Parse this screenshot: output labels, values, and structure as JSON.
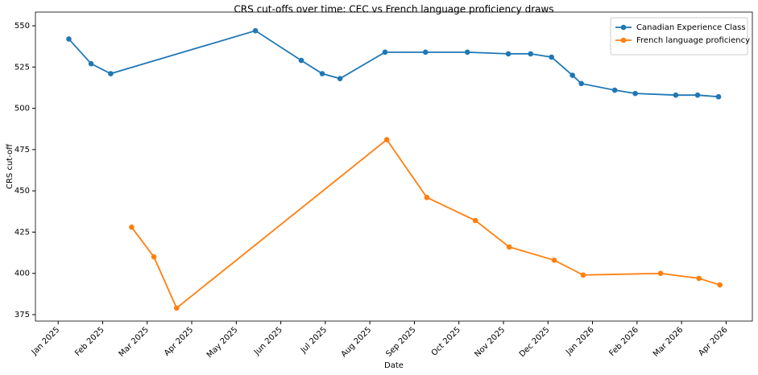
{
  "chart_data": {
    "type": "line",
    "title": "CRS cut-offs over time: CEC vs French language proficiency draws",
    "x_label": "Date",
    "y_label": "CRS cut-off",
    "xlim": [
      -0.51,
      15.59
    ],
    "xticks": [
      {
        "value": 0,
        "label": "Jan 2025"
      },
      {
        "value": 1,
        "label": "Feb 2025"
      },
      {
        "value": 2,
        "label": "Mar 2025"
      },
      {
        "value": 3,
        "label": "Apr 2025"
      },
      {
        "value": 4,
        "label": "May 2025"
      },
      {
        "value": 5,
        "label": "Jun 2025"
      },
      {
        "value": 6,
        "label": "Jul 2025"
      },
      {
        "value": 7,
        "label": "Aug 2025"
      },
      {
        "value": 8,
        "label": "Sep 2025"
      },
      {
        "value": 9,
        "label": "Oct 2025"
      },
      {
        "value": 10,
        "label": "Nov 2025"
      },
      {
        "value": 11,
        "label": "Dec 2025"
      },
      {
        "value": 12,
        "label": "Jan 2026"
      },
      {
        "value": 13,
        "label": "Feb 2026"
      },
      {
        "value": 14,
        "label": "Mar 2026"
      },
      {
        "value": 15,
        "label": "Apr 2026"
      }
    ],
    "ylim": [
      371.1,
      558.3
    ],
    "yticks": [
      375,
      400,
      425,
      450,
      475,
      500,
      525,
      550
    ],
    "legend": "upper right",
    "series": [
      {
        "name": "Canadian Experience Class",
        "color": "#1f77b4",
        "x": [
          0.24,
          0.74,
          1.18,
          4.43,
          5.46,
          5.93,
          6.33,
          7.34,
          8.25,
          9.19,
          10.11,
          10.61,
          11.08,
          11.55,
          11.75,
          12.5,
          12.96,
          13.87,
          14.36,
          14.83
        ],
        "values": [
          542,
          527,
          521,
          547,
          529,
          521,
          518,
          534,
          534,
          534,
          533,
          533,
          531,
          520,
          515,
          511,
          509,
          508,
          508,
          507
        ]
      },
      {
        "name": "French language proficiency",
        "color": "#ff7f0e",
        "x": [
          1.65,
          2.15,
          2.66,
          7.38,
          8.28,
          9.37,
          10.13,
          11.14,
          11.79,
          13.53,
          14.39,
          14.86
        ],
        "values": [
          428,
          410,
          379,
          481,
          446,
          432,
          416,
          408,
          399,
          400,
          397,
          393
        ]
      }
    ]
  }
}
